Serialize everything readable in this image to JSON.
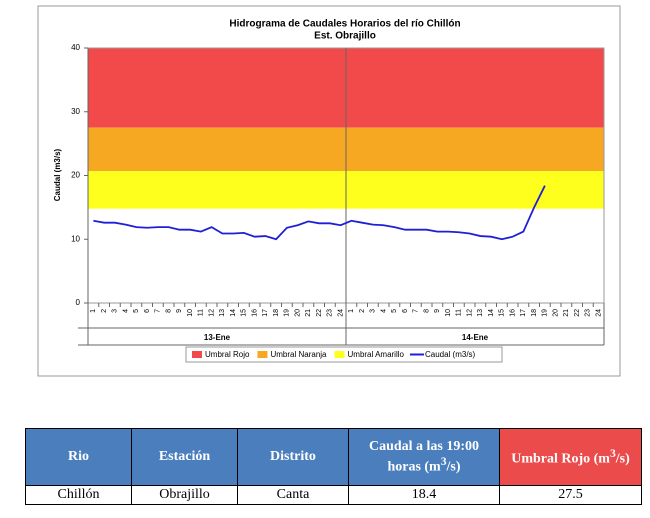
{
  "chart_data": {
    "type": "line",
    "title": "Hidrograma de Caudales Horarios del río Chillón",
    "subtitle": "Est. Obrajillo",
    "y_label": "Caudal (m3/s)",
    "ylim": [
      0,
      40
    ],
    "yticks": [
      0,
      10,
      20,
      30,
      40
    ],
    "categories": [
      "1",
      "2",
      "3",
      "4",
      "5",
      "6",
      "7",
      "8",
      "9",
      "10",
      "11",
      "12",
      "13",
      "14",
      "15",
      "16",
      "17",
      "18",
      "19",
      "20",
      "21",
      "22",
      "23",
      "24",
      "1",
      "2",
      "3",
      "4",
      "5",
      "6",
      "7",
      "8",
      "9",
      "10",
      "11",
      "12",
      "13",
      "14",
      "15",
      "16",
      "17",
      "18",
      "19",
      "20",
      "21",
      "22",
      "23",
      "24"
    ],
    "groups": [
      "13-Ene",
      "14-Ene"
    ],
    "thresholds": [
      {
        "name": "Umbral Rojo",
        "color": "#f24a4a",
        "from": 27.5,
        "to": 40
      },
      {
        "name": "Umbral Naranja",
        "color": "#f7a823",
        "from": 20.7,
        "to": 27.5
      },
      {
        "name": "Umbral Amarillo",
        "color": "#ffff1e",
        "from": 14.8,
        "to": 20.7
      }
    ],
    "series": [
      {
        "name": "Caudal (m3/s)",
        "color": "#1f1fd6",
        "values": [
          12.9,
          12.6,
          12.6,
          12.3,
          11.9,
          11.8,
          11.9,
          11.9,
          11.5,
          11.5,
          11.2,
          11.9,
          10.9,
          10.9,
          11.0,
          10.4,
          10.5,
          10.0,
          11.8,
          12.2,
          12.8,
          12.5,
          12.5,
          12.2,
          12.9,
          12.6,
          12.3,
          12.2,
          11.9,
          11.5,
          11.5,
          11.5,
          11.2,
          11.2,
          11.1,
          10.9,
          10.5,
          10.4,
          10.0,
          10.4,
          11.2,
          15.0,
          18.4,
          null,
          null,
          null,
          null,
          null
        ]
      }
    ]
  },
  "table": {
    "headers": [
      {
        "text": "Rio"
      },
      {
        "text": "Estación"
      },
      {
        "text": "Distrito"
      },
      {
        "text": "Caudal a las 19:00 horas (m",
        "sup": "3",
        "after": "/s)"
      },
      {
        "text": "Umbral Rojo (m",
        "sup": "3",
        "after": "/s)"
      }
    ],
    "rows": [
      [
        "Chillón",
        "Obrajillo",
        "Canta",
        "18.4",
        "27.5"
      ]
    ]
  }
}
